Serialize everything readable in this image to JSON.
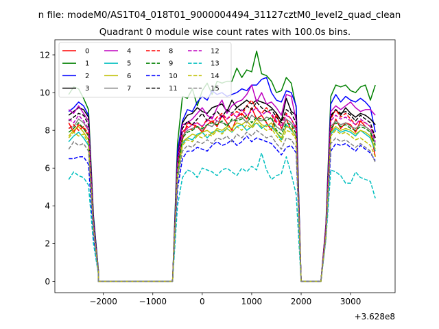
{
  "chart_data": {
    "type": "line",
    "title_line1": "n file: modeM0/AS1T04_018T01_9000004494_31127cztM0_level2_quad_clean",
    "title_line2": "Quadrant 0 module wise count rates with 100.0s bins.",
    "xlabel": "",
    "ylabel": "",
    "offset_label": "+3.628e8",
    "xlim": [
      -2980,
      3900
    ],
    "ylim": [
      -0.6,
      12.8
    ],
    "xticks": [
      -2000,
      -1000,
      0,
      1000,
      2000,
      3000
    ],
    "xtick_labels": [
      "−2000",
      "−1000",
      "0",
      "1000",
      "2000",
      "3000"
    ],
    "yticks": [
      0,
      2,
      4,
      6,
      8,
      10,
      12
    ],
    "ytick_labels": [
      "0",
      "2",
      "4",
      "6",
      "8",
      "10",
      "12"
    ],
    "grid": false,
    "legend_position": "top-left",
    "segments": [
      {
        "x_start": -2700,
        "count": 7
      },
      {
        "x_start": -2100,
        "count": 16
      },
      {
        "x_start": -500,
        "count": 25
      },
      {
        "x_start": 2000,
        "count": 2
      },
      {
        "x_start": 2200,
        "count": 3
      },
      {
        "x_start": 2500,
        "count": 11
      }
    ],
    "series": [
      {
        "name": "0",
        "color": "#ff0000",
        "dash": "solid",
        "s1": [
          8.4,
          7.9,
          8.3,
          8.1,
          7.7,
          3.0,
          0.5
        ],
        "s3": [
          6.2,
          7.5,
          8.4,
          8.3,
          8.2,
          7.9,
          8.3,
          8.5,
          8.2,
          8.8,
          8.4,
          8.0,
          8.7,
          8.9,
          8.6,
          9.2,
          8.6,
          8.8,
          8.4,
          8.0,
          8.9,
          8.1,
          8.6,
          8.0,
          8.3
        ],
        "s5": [
          2.5,
          7.9,
          8.6,
          8.1,
          8.4,
          8.3,
          7.9,
          8.5,
          8.2,
          8.0,
          6.6
        ]
      },
      {
        "name": "1",
        "color": "#008000",
        "dash": "solid",
        "s1": [
          9.9,
          10.3,
          10.2,
          9.7,
          9.1,
          3.5,
          0.6
        ],
        "s3": [
          7.3,
          9.8,
          9.7,
          10.2,
          9.3,
          10.1,
          10.5,
          9.9,
          10.6,
          10.5,
          10.6,
          10.6,
          11.3,
          10.8,
          11.2,
          11.1,
          12.2,
          11.0,
          10.9,
          10.6,
          10.0,
          10.1,
          10.8,
          10.5,
          9.2
        ],
        "s5": [
          3.0,
          9.8,
          10.4,
          10.3,
          10.4,
          10.1,
          10.0,
          10.3,
          10.4,
          9.6,
          10.4
        ]
      },
      {
        "name": "2",
        "color": "#0000ff",
        "dash": "solid",
        "s1": [
          9.0,
          9.2,
          9.5,
          9.3,
          8.8,
          3.4,
          0.6
        ],
        "s3": [
          6.9,
          8.5,
          9.1,
          9.0,
          9.5,
          9.8,
          9.6,
          10.1,
          9.9,
          10.0,
          9.8,
          9.9,
          10.0,
          10.2,
          10.1,
          10.4,
          10.4,
          10.7,
          10.8,
          10.0,
          9.6,
          9.5,
          10.1,
          10.0,
          9.3
        ],
        "s5": [
          2.9,
          9.4,
          9.9,
          9.5,
          9.8,
          9.6,
          9.5,
          9.7,
          9.5,
          9.2,
          7.9
        ]
      },
      {
        "name": "3",
        "color": "#000000",
        "dash": "solid",
        "s1": [
          8.8,
          9.0,
          9.2,
          9.1,
          8.7,
          3.3,
          0.5
        ],
        "s3": [
          6.5,
          8.4,
          8.8,
          8.9,
          9.2,
          9.0,
          8.9,
          9.2,
          9.3,
          9.4,
          9.0,
          9.6,
          9.2,
          9.4,
          9.6,
          9.4,
          9.6,
          9.5,
          9.4,
          9.2,
          8.9,
          8.5,
          9.7,
          9.0,
          8.8
        ],
        "s5": [
          2.8,
          8.7,
          9.1,
          8.8,
          9.2,
          8.9,
          8.7,
          8.9,
          8.8,
          8.6,
          8.3
        ]
      },
      {
        "name": "4",
        "color": "#bf00bf",
        "dash": "solid",
        "s1": [
          9.1,
          8.9,
          9.3,
          8.9,
          8.5,
          3.2,
          0.5
        ],
        "s3": [
          6.4,
          8.3,
          8.4,
          8.6,
          8.9,
          9.2,
          8.8,
          8.6,
          9.2,
          9.6,
          8.9,
          9.3,
          9.5,
          9.6,
          9.9,
          10.4,
          9.5,
          10.0,
          9.4,
          9.5,
          9.2,
          8.8,
          9.9,
          9.8,
          8.5
        ],
        "s5": [
          2.9,
          9.0,
          9.3,
          9.1,
          9.3,
          9.5,
          9.2,
          9.0,
          9.1,
          9.1,
          8.8
        ]
      },
      {
        "name": "5",
        "color": "#00bfbf",
        "dash": "solid",
        "s1": [
          7.4,
          7.7,
          7.9,
          7.6,
          7.2,
          2.8,
          0.5
        ],
        "s3": [
          5.5,
          7.3,
          7.6,
          7.5,
          7.8,
          7.9,
          7.6,
          7.9,
          8.0,
          7.9,
          8.1,
          7.9,
          8.2,
          8.3,
          8.0,
          8.2,
          8.4,
          8.1,
          8.3,
          8.2,
          7.9,
          7.5,
          8.3,
          8.0,
          7.7
        ],
        "s5": [
          2.4,
          7.8,
          8.1,
          7.9,
          8.0,
          7.9,
          7.7,
          8.0,
          7.8,
          7.6,
          6.9
        ]
      },
      {
        "name": "6",
        "color": "#bfbf00",
        "dash": "solid",
        "s1": [
          7.7,
          8.0,
          8.2,
          7.9,
          7.5,
          2.9,
          0.5
        ],
        "s3": [
          5.8,
          7.4,
          7.6,
          7.8,
          7.7,
          7.9,
          8.0,
          7.8,
          8.1,
          8.0,
          8.2,
          8.1,
          8.4,
          8.3,
          8.5,
          8.2,
          8.6,
          8.3,
          8.2,
          8.4,
          7.9,
          7.6,
          8.2,
          8.1,
          7.6
        ],
        "s5": [
          2.5,
          7.9,
          8.2,
          8.0,
          8.1,
          8.0,
          7.8,
          8.0,
          7.9,
          7.7,
          7.0
        ]
      },
      {
        "name": "7",
        "color": "#808080",
        "dash": "solid",
        "s1": [
          8.1,
          8.2,
          8.6,
          8.4,
          8.0,
          3.1,
          0.5
        ],
        "s3": [
          6.0,
          7.7,
          8.0,
          8.1,
          8.2,
          8.0,
          8.3,
          8.2,
          8.5,
          8.4,
          8.3,
          8.5,
          8.6,
          8.7,
          8.4,
          8.8,
          8.6,
          8.5,
          8.7,
          8.6,
          8.2,
          8.0,
          8.6,
          8.4,
          8.0
        ],
        "s5": [
          2.6,
          8.2,
          8.5,
          8.3,
          8.4,
          8.2,
          8.1,
          8.3,
          8.2,
          8.0,
          7.3
        ]
      },
      {
        "name": "8",
        "color": "#ff0000",
        "dash": "dashed",
        "s1": [
          8.1,
          8.3,
          8.0,
          8.2,
          7.8,
          3.0,
          0.5
        ],
        "s3": [
          6.1,
          7.9,
          8.2,
          8.0,
          8.4,
          8.2,
          8.6,
          8.4,
          8.7,
          8.9,
          8.6,
          8.8,
          9.0,
          8.8,
          9.3,
          9.6,
          9.1,
          8.9,
          9.2,
          8.8,
          8.4,
          8.2,
          8.9,
          8.6,
          8.1
        ],
        "s5": [
          2.6,
          8.6,
          9.1,
          8.7,
          8.9,
          8.6,
          8.3,
          8.5,
          8.4,
          8.2,
          7.6
        ]
      },
      {
        "name": "9",
        "color": "#008000",
        "dash": "dashed",
        "s1": [
          7.9,
          8.1,
          8.4,
          8.1,
          7.7,
          3.0,
          0.5
        ],
        "s3": [
          5.9,
          7.6,
          7.9,
          8.0,
          8.2,
          8.1,
          8.3,
          8.4,
          8.3,
          8.5,
          8.2,
          8.6,
          8.5,
          8.6,
          8.8,
          8.4,
          8.7,
          8.6,
          8.5,
          8.7,
          8.0,
          7.8,
          8.4,
          8.3,
          7.8
        ],
        "s5": [
          2.5,
          8.1,
          8.4,
          8.2,
          8.3,
          8.1,
          8.0,
          8.2,
          8.1,
          7.9,
          7.2
        ]
      },
      {
        "name": "10",
        "color": "#0000ff",
        "dash": "dashed",
        "s1": [
          6.5,
          6.5,
          6.6,
          6.6,
          6.2,
          2.4,
          0.4
        ],
        "s3": [
          4.9,
          6.5,
          6.9,
          6.9,
          7.1,
          7.0,
          6.9,
          7.2,
          7.4,
          7.2,
          7.3,
          7.5,
          7.2,
          7.4,
          7.7,
          7.4,
          7.6,
          7.5,
          7.4,
          7.3,
          7.0,
          6.7,
          7.1,
          7.2,
          6.8
        ],
        "s5": [
          2.3,
          6.9,
          7.3,
          7.2,
          7.3,
          7.1,
          6.9,
          7.2,
          7.0,
          6.8,
          6.4
        ]
      },
      {
        "name": "11",
        "color": "#000000",
        "dash": "dashed",
        "s1": [
          8.5,
          8.7,
          8.9,
          8.8,
          8.3,
          3.2,
          0.5
        ],
        "s3": [
          6.3,
          8.1,
          8.5,
          8.3,
          8.6,
          8.9,
          8.5,
          8.8,
          9.0,
          8.7,
          9.1,
          8.9,
          9.2,
          9.0,
          9.3,
          9.1,
          9.5,
          9.2,
          9.0,
          9.1,
          8.7,
          8.4,
          9.1,
          8.9,
          8.4
        ],
        "s5": [
          2.7,
          8.8,
          9.1,
          8.9,
          9.0,
          8.8,
          8.5,
          8.8,
          8.6,
          8.4,
          7.6
        ]
      },
      {
        "name": "12",
        "color": "#bf00bf",
        "dash": "dashed",
        "s1": [
          8.6,
          8.4,
          8.8,
          8.5,
          8.1,
          3.1,
          0.5
        ],
        "s3": [
          6.2,
          7.9,
          8.1,
          8.3,
          8.4,
          8.2,
          8.5,
          8.7,
          8.5,
          8.8,
          8.6,
          8.9,
          8.7,
          9.1,
          8.8,
          9.0,
          9.2,
          8.8,
          9.0,
          8.9,
          8.5,
          8.2,
          8.8,
          8.6,
          8.1
        ],
        "s5": [
          2.6,
          8.5,
          8.8,
          8.6,
          8.7,
          8.5,
          8.3,
          8.6,
          8.4,
          8.2,
          7.4
        ]
      },
      {
        "name": "13",
        "color": "#00bfbf",
        "dash": "dashed",
        "s1": [
          5.4,
          5.8,
          5.6,
          5.5,
          5.1,
          2.0,
          0.4
        ],
        "s3": [
          4.0,
          5.5,
          5.9,
          5.8,
          5.5,
          6.0,
          5.9,
          5.8,
          5.6,
          5.9,
          6.0,
          5.8,
          5.6,
          6.0,
          5.8,
          6.1,
          5.9,
          6.8,
          5.9,
          5.4,
          5.6,
          5.7,
          6.6,
          5.7,
          4.6
        ],
        "s5": [
          2.2,
          5.9,
          5.8,
          5.6,
          5.2,
          5.2,
          5.8,
          5.5,
          5.4,
          5.3,
          4.4
        ]
      },
      {
        "name": "14",
        "color": "#bfbf00",
        "dash": "dashed",
        "s1": [
          7.6,
          7.9,
          7.7,
          7.8,
          7.3,
          2.8,
          0.5
        ],
        "s3": [
          5.7,
          7.2,
          7.5,
          7.4,
          7.7,
          7.6,
          7.8,
          7.7,
          8.0,
          7.8,
          8.1,
          7.9,
          8.2,
          8.0,
          8.3,
          8.1,
          8.4,
          8.2,
          8.0,
          8.1,
          7.7,
          7.4,
          8.0,
          7.9,
          7.5
        ],
        "s5": [
          2.4,
          7.7,
          8.0,
          7.8,
          7.9,
          7.7,
          7.5,
          7.6,
          7.4,
          7.2,
          6.6
        ]
      },
      {
        "name": "15",
        "color": "#808080",
        "dash": "dashed",
        "s1": [
          7.0,
          7.4,
          7.2,
          7.3,
          6.9,
          2.7,
          0.4
        ],
        "s3": [
          5.3,
          6.9,
          7.2,
          7.1,
          7.4,
          7.3,
          7.5,
          7.3,
          7.6,
          7.5,
          7.7,
          7.4,
          7.8,
          7.6,
          7.9,
          7.7,
          8.0,
          7.8,
          7.6,
          7.7,
          7.3,
          7.0,
          7.6,
          7.5,
          7.1
        ],
        "s5": [
          2.3,
          7.3,
          7.6,
          7.4,
          7.5,
          7.3,
          7.1,
          7.3,
          7.1,
          6.9,
          6.3
        ]
      }
    ]
  }
}
